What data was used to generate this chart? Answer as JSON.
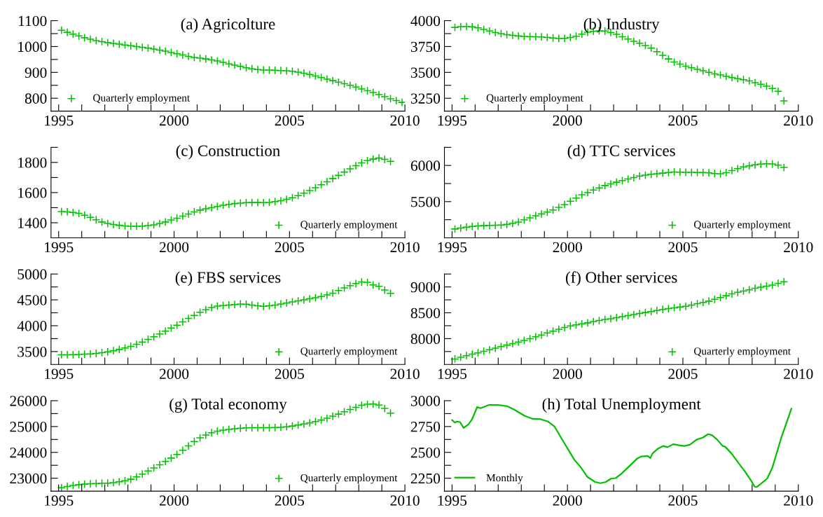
{
  "chart_data": [
    {
      "type": "scatter",
      "title": "(a) Agricolture",
      "marker": "cross",
      "grid": false,
      "legend": "bottom left",
      "x": [
        1995.125,
        1995.375,
        1995.625,
        1995.875,
        1996.125,
        1996.375,
        1996.625,
        1996.875,
        1997.125,
        1997.375,
        1997.625,
        1997.875,
        1998.125,
        1998.375,
        1998.625,
        1998.875,
        1999.125,
        1999.375,
        1999.625,
        1999.875,
        2000.125,
        2000.375,
        2000.625,
        2000.875,
        2001.125,
        2001.375,
        2001.625,
        2001.875,
        2002.125,
        2002.375,
        2002.625,
        2002.875,
        2003.125,
        2003.375,
        2003.625,
        2003.875,
        2004.125,
        2004.375,
        2004.625,
        2004.875,
        2005.125,
        2005.375,
        2005.625,
        2005.875,
        2006.125,
        2006.375,
        2006.625,
        2006.875,
        2007.125,
        2007.375,
        2007.625,
        2007.875,
        2008.125,
        2008.375,
        2008.625,
        2008.875,
        2009.125,
        2009.375,
        2009.625,
        2009.875
      ],
      "series": [
        {
          "name": "Quarterly employment",
          "color": "#00c000",
          "values": [
            1063,
            1055,
            1048,
            1041,
            1034,
            1028,
            1023,
            1019,
            1015,
            1012,
            1009,
            1006,
            1003,
            1000,
            997,
            994,
            990,
            986,
            982,
            977,
            972,
            967,
            962,
            958,
            955,
            952,
            948,
            944,
            939,
            933,
            928,
            923,
            918,
            914,
            911,
            909,
            909,
            908,
            907,
            906,
            904,
            901,
            897,
            892,
            886,
            880,
            874,
            868,
            862,
            856,
            850,
            843,
            836,
            829,
            822,
            814,
            806,
            798,
            791,
            784
          ]
        }
      ],
      "xlim": [
        1994.67,
        2010
      ],
      "ylim": [
        750,
        1100
      ],
      "xticks": [
        1995,
        {
          "value": 1996,
          "label": null
        },
        {
          "value": 1997,
          "label": null
        },
        {
          "value": 1998,
          "label": null
        },
        {
          "value": 1999,
          "label": null
        },
        2000,
        {
          "value": 2001,
          "label": null
        },
        {
          "value": 2002,
          "label": null
        },
        {
          "value": 2003,
          "label": null
        },
        {
          "value": 2004,
          "label": null
        },
        2005,
        {
          "value": 2006,
          "label": null
        },
        {
          "value": 2007,
          "label": null
        },
        {
          "value": 2008,
          "label": null
        },
        {
          "value": 2009,
          "label": null
        },
        2010
      ],
      "yticks": [
        800,
        {
          "value": 850,
          "label": null
        },
        900,
        {
          "value": 950,
          "label": null
        },
        1000,
        {
          "value": 1050,
          "label": null
        },
        1100
      ]
    },
    {
      "type": "scatter",
      "title": "(b) Industry",
      "marker": "cross",
      "grid": false,
      "legend": "bottom left",
      "x": [
        1995.125,
        1995.375,
        1995.625,
        1995.875,
        1996.125,
        1996.375,
        1996.625,
        1996.875,
        1997.125,
        1997.375,
        1997.625,
        1997.875,
        1998.125,
        1998.375,
        1998.625,
        1998.875,
        1999.125,
        1999.375,
        1999.625,
        1999.875,
        2000.125,
        2000.375,
        2000.625,
        2000.875,
        2001.125,
        2001.375,
        2001.625,
        2001.875,
        2002.125,
        2002.375,
        2002.625,
        2002.875,
        2003.125,
        2003.375,
        2003.625,
        2003.875,
        2004.125,
        2004.375,
        2004.625,
        2004.875,
        2005.125,
        2005.375,
        2005.625,
        2005.875,
        2006.125,
        2006.375,
        2006.625,
        2006.875,
        2007.125,
        2007.375,
        2007.625,
        2007.875,
        2008.125,
        2008.375,
        2008.625,
        2008.875,
        2009.125,
        2009.375
      ],
      "series": [
        {
          "name": "Quarterly employment",
          "color": "#00c000",
          "values": [
            3935,
            3942,
            3944,
            3940,
            3930,
            3915,
            3900,
            3885,
            3875,
            3865,
            3858,
            3852,
            3848,
            3846,
            3845,
            3843,
            3838,
            3833,
            3828,
            3829,
            3838,
            3850,
            3870,
            3888,
            3897,
            3902,
            3900,
            3885,
            3868,
            3845,
            3822,
            3800,
            3782,
            3760,
            3735,
            3700,
            3665,
            3630,
            3600,
            3580,
            3560,
            3545,
            3530,
            3515,
            3500,
            3485,
            3475,
            3462,
            3450,
            3440,
            3430,
            3418,
            3400,
            3385,
            3366,
            3344,
            3317,
            3225
          ]
        }
      ],
      "xlim": [
        1994.67,
        2010
      ],
      "ylim": [
        3125,
        4000
      ],
      "xticks": [
        1995,
        {
          "value": 1996,
          "label": null
        },
        {
          "value": 1997,
          "label": null
        },
        {
          "value": 1998,
          "label": null
        },
        {
          "value": 1999,
          "label": null
        },
        2000,
        {
          "value": 2001,
          "label": null
        },
        {
          "value": 2002,
          "label": null
        },
        {
          "value": 2003,
          "label": null
        },
        {
          "value": 2004,
          "label": null
        },
        2005,
        {
          "value": 2006,
          "label": null
        },
        {
          "value": 2007,
          "label": null
        },
        {
          "value": 2008,
          "label": null
        },
        {
          "value": 2009,
          "label": null
        },
        2010
      ],
      "yticks": [
        3250,
        {
          "value": 3375,
          "label": null
        },
        3500,
        {
          "value": 3625,
          "label": null
        },
        3750,
        {
          "value": 3875,
          "label": null
        },
        4000
      ]
    },
    {
      "type": "scatter",
      "title": "(c) Construction",
      "marker": "cross",
      "grid": false,
      "legend": "bottom right",
      "x": [
        1995.125,
        1995.375,
        1995.625,
        1995.875,
        1996.125,
        1996.375,
        1996.625,
        1996.875,
        1997.125,
        1997.375,
        1997.625,
        1997.875,
        1998.125,
        1998.375,
        1998.625,
        1998.875,
        1999.125,
        1999.375,
        1999.625,
        1999.875,
        2000.125,
        2000.375,
        2000.625,
        2000.875,
        2001.125,
        2001.375,
        2001.625,
        2001.875,
        2002.125,
        2002.375,
        2002.625,
        2002.875,
        2003.125,
        2003.375,
        2003.625,
        2003.875,
        2004.125,
        2004.375,
        2004.625,
        2004.875,
        2005.125,
        2005.375,
        2005.625,
        2005.875,
        2006.125,
        2006.375,
        2006.625,
        2006.875,
        2007.125,
        2007.375,
        2007.625,
        2007.875,
        2008.125,
        2008.375,
        2008.625,
        2008.875,
        2009.125,
        2009.375
      ],
      "series": [
        {
          "name": "Quarterly employment",
          "color": "#00c000",
          "values": [
            1474,
            1472,
            1468,
            1462,
            1450,
            1436,
            1420,
            1405,
            1395,
            1388,
            1383,
            1379,
            1377,
            1377,
            1378,
            1381,
            1386,
            1395,
            1405,
            1418,
            1430,
            1444,
            1458,
            1472,
            1484,
            1493,
            1500,
            1508,
            1516,
            1522,
            1527,
            1530,
            1533,
            1534,
            1534,
            1533,
            1535,
            1540,
            1546,
            1555,
            1566,
            1580,
            1596,
            1614,
            1632,
            1652,
            1672,
            1693,
            1714,
            1736,
            1757,
            1778,
            1797,
            1812,
            1822,
            1829,
            1820,
            1807
          ]
        }
      ],
      "xlim": [
        1994.67,
        2010
      ],
      "ylim": [
        1300,
        1900
      ],
      "xticks": [
        1995,
        {
          "value": 1996,
          "label": null
        },
        {
          "value": 1997,
          "label": null
        },
        {
          "value": 1998,
          "label": null
        },
        {
          "value": 1999,
          "label": null
        },
        2000,
        {
          "value": 2001,
          "label": null
        },
        {
          "value": 2002,
          "label": null
        },
        {
          "value": 2003,
          "label": null
        },
        {
          "value": 2004,
          "label": null
        },
        2005,
        {
          "value": 2006,
          "label": null
        },
        {
          "value": 2007,
          "label": null
        },
        {
          "value": 2008,
          "label": null
        },
        {
          "value": 2009,
          "label": null
        },
        2010
      ],
      "yticks": [
        1400,
        {
          "value": 1500,
          "label": null
        },
        1600,
        {
          "value": 1700,
          "label": null
        },
        1800,
        {
          "value": 1900,
          "label": null
        }
      ]
    },
    {
      "type": "scatter",
      "title": "(d) TTC services",
      "marker": "cross",
      "grid": false,
      "legend": "bottom right",
      "x": [
        1995.125,
        1995.375,
        1995.625,
        1995.875,
        1996.125,
        1996.375,
        1996.625,
        1996.875,
        1997.125,
        1997.375,
        1997.625,
        1997.875,
        1998.125,
        1998.375,
        1998.625,
        1998.875,
        1999.125,
        1999.375,
        1999.625,
        1999.875,
        2000.125,
        2000.375,
        2000.625,
        2000.875,
        2001.125,
        2001.375,
        2001.625,
        2001.875,
        2002.125,
        2002.375,
        2002.625,
        2002.875,
        2003.125,
        2003.375,
        2003.625,
        2003.875,
        2004.125,
        2004.375,
        2004.625,
        2004.875,
        2005.125,
        2005.375,
        2005.625,
        2005.875,
        2006.125,
        2006.375,
        2006.625,
        2006.875,
        2007.125,
        2007.375,
        2007.625,
        2007.875,
        2008.125,
        2008.375,
        2008.625,
        2008.875,
        2009.125,
        2009.375
      ],
      "series": [
        {
          "name": "Quarterly employment",
          "color": "#00c000",
          "values": [
            5122,
            5135,
            5148,
            5158,
            5164,
            5168,
            5171,
            5173,
            5176,
            5185,
            5200,
            5218,
            5248,
            5275,
            5305,
            5330,
            5355,
            5385,
            5420,
            5460,
            5505,
            5550,
            5595,
            5625,
            5660,
            5690,
            5722,
            5745,
            5768,
            5790,
            5812,
            5832,
            5853,
            5866,
            5878,
            5886,
            5894,
            5902,
            5910,
            5908,
            5905,
            5904,
            5903,
            5902,
            5898,
            5888,
            5886,
            5900,
            5930,
            5955,
            5980,
            5995,
            6008,
            6018,
            6024,
            6020,
            6005,
            5972
          ]
        }
      ],
      "xlim": [
        1994.67,
        2010
      ],
      "ylim": [
        5000,
        6250
      ],
      "xticks": [
        1995,
        {
          "value": 1996,
          "label": null
        },
        {
          "value": 1997,
          "label": null
        },
        {
          "value": 1998,
          "label": null
        },
        {
          "value": 1999,
          "label": null
        },
        2000,
        {
          "value": 2001,
          "label": null
        },
        {
          "value": 2002,
          "label": null
        },
        {
          "value": 2003,
          "label": null
        },
        {
          "value": 2004,
          "label": null
        },
        2005,
        {
          "value": 2006,
          "label": null
        },
        {
          "value": 2007,
          "label": null
        },
        {
          "value": 2008,
          "label": null
        },
        {
          "value": 2009,
          "label": null
        },
        2010
      ],
      "yticks": [
        {
          "value": 5250,
          "label": null
        },
        5500,
        {
          "value": 5750,
          "label": null
        },
        6000,
        {
          "value": 6250,
          "label": null
        }
      ]
    },
    {
      "type": "scatter",
      "title": "(e) FBS services",
      "marker": "cross",
      "grid": false,
      "legend": "bottom right",
      "x": [
        1995.125,
        1995.375,
        1995.625,
        1995.875,
        1996.125,
        1996.375,
        1996.625,
        1996.875,
        1997.125,
        1997.375,
        1997.625,
        1997.875,
        1998.125,
        1998.375,
        1998.625,
        1998.875,
        1999.125,
        1999.375,
        1999.625,
        1999.875,
        2000.125,
        2000.375,
        2000.625,
        2000.875,
        2001.125,
        2001.375,
        2001.625,
        2001.875,
        2002.125,
        2002.375,
        2002.625,
        2002.875,
        2003.125,
        2003.375,
        2003.625,
        2003.875,
        2004.125,
        2004.375,
        2004.625,
        2004.875,
        2005.125,
        2005.375,
        2005.625,
        2005.875,
        2006.125,
        2006.375,
        2006.625,
        2006.875,
        2007.125,
        2007.375,
        2007.625,
        2007.875,
        2008.125,
        2008.375,
        2008.625,
        2008.875,
        2009.125,
        2009.375
      ],
      "series": [
        {
          "name": "Quarterly employment",
          "color": "#00c000",
          "values": [
            3437,
            3438,
            3440,
            3444,
            3449,
            3455,
            3464,
            3478,
            3495,
            3515,
            3540,
            3570,
            3600,
            3640,
            3685,
            3735,
            3785,
            3840,
            3895,
            3955,
            4010,
            4075,
            4140,
            4200,
            4260,
            4310,
            4350,
            4380,
            4392,
            4400,
            4410,
            4420,
            4415,
            4400,
            4385,
            4375,
            4385,
            4400,
            4420,
            4440,
            4460,
            4480,
            4500,
            4520,
            4540,
            4565,
            4595,
            4630,
            4680,
            4730,
            4775,
            4815,
            4846,
            4838,
            4788,
            4762,
            4690,
            4627
          ]
        }
      ],
      "xlim": [
        1994.67,
        2010
      ],
      "ylim": [
        3250,
        5000
      ],
      "xticks": [
        1995,
        {
          "value": 1996,
          "label": null
        },
        {
          "value": 1997,
          "label": null
        },
        {
          "value": 1998,
          "label": null
        },
        {
          "value": 1999,
          "label": null
        },
        2000,
        {
          "value": 2001,
          "label": null
        },
        {
          "value": 2002,
          "label": null
        },
        {
          "value": 2003,
          "label": null
        },
        {
          "value": 2004,
          "label": null
        },
        2005,
        {
          "value": 2006,
          "label": null
        },
        {
          "value": 2007,
          "label": null
        },
        {
          "value": 2008,
          "label": null
        },
        {
          "value": 2009,
          "label": null
        },
        2010
      ],
      "yticks": [
        3500,
        {
          "value": 3750,
          "label": null
        },
        4000,
        {
          "value": 4250,
          "label": null
        },
        4500,
        {
          "value": 4750,
          "label": null
        },
        5000
      ]
    },
    {
      "type": "scatter",
      "title": "(f) Other services",
      "marker": "cross",
      "grid": false,
      "legend": "bottom right",
      "x": [
        1995.125,
        1995.375,
        1995.625,
        1995.875,
        1996.125,
        1996.375,
        1996.625,
        1996.875,
        1997.125,
        1997.375,
        1997.625,
        1997.875,
        1998.125,
        1998.375,
        1998.625,
        1998.875,
        1999.125,
        1999.375,
        1999.625,
        1999.875,
        2000.125,
        2000.375,
        2000.625,
        2000.875,
        2001.125,
        2001.375,
        2001.625,
        2001.875,
        2002.125,
        2002.375,
        2002.625,
        2002.875,
        2003.125,
        2003.375,
        2003.625,
        2003.875,
        2004.125,
        2004.375,
        2004.625,
        2004.875,
        2005.125,
        2005.375,
        2005.625,
        2005.875,
        2006.125,
        2006.375,
        2006.625,
        2006.875,
        2007.125,
        2007.375,
        2007.625,
        2007.875,
        2008.125,
        2008.375,
        2008.625,
        2008.875,
        2009.125,
        2009.375
      ],
      "series": [
        {
          "name": "Quarterly employment",
          "color": "#00c000",
          "values": [
            7607,
            7640,
            7670,
            7700,
            7725,
            7755,
            7785,
            7815,
            7845,
            7875,
            7905,
            7935,
            7965,
            8000,
            8035,
            8070,
            8110,
            8145,
            8180,
            8215,
            8245,
            8265,
            8285,
            8305,
            8330,
            8350,
            8370,
            8385,
            8405,
            8425,
            8445,
            8465,
            8485,
            8505,
            8525,
            8545,
            8565,
            8580,
            8595,
            8610,
            8625,
            8650,
            8675,
            8700,
            8725,
            8760,
            8795,
            8830,
            8865,
            8895,
            8920,
            8945,
            8975,
            8995,
            9015,
            9035,
            9070,
            9100
          ]
        }
      ],
      "xlim": [
        1994.67,
        2010
      ],
      "ylim": [
        7500,
        9250
      ],
      "xticks": [
        1995,
        {
          "value": 1996,
          "label": null
        },
        {
          "value": 1997,
          "label": null
        },
        {
          "value": 1998,
          "label": null
        },
        {
          "value": 1999,
          "label": null
        },
        2000,
        {
          "value": 2001,
          "label": null
        },
        {
          "value": 2002,
          "label": null
        },
        {
          "value": 2003,
          "label": null
        },
        {
          "value": 2004,
          "label": null
        },
        2005,
        {
          "value": 2006,
          "label": null
        },
        {
          "value": 2007,
          "label": null
        },
        {
          "value": 2008,
          "label": null
        },
        {
          "value": 2009,
          "label": null
        },
        2010
      ],
      "yticks": [
        {
          "value": 7750,
          "label": null
        },
        8000,
        {
          "value": 8250,
          "label": null
        },
        8500,
        {
          "value": 8750,
          "label": null
        },
        9000,
        {
          "value": 9250,
          "label": null
        }
      ]
    },
    {
      "type": "scatter",
      "title": "(g) Total economy",
      "marker": "cross",
      "grid": false,
      "legend": "bottom right",
      "x": [
        1995.125,
        1995.375,
        1995.625,
        1995.875,
        1996.125,
        1996.375,
        1996.625,
        1996.875,
        1997.125,
        1997.375,
        1997.625,
        1997.875,
        1998.125,
        1998.375,
        1998.625,
        1998.875,
        1999.125,
        1999.375,
        1999.625,
        1999.875,
        2000.125,
        2000.375,
        2000.625,
        2000.875,
        2001.125,
        2001.375,
        2001.625,
        2001.875,
        2002.125,
        2002.375,
        2002.625,
        2002.875,
        2003.125,
        2003.375,
        2003.625,
        2003.875,
        2004.125,
        2004.375,
        2004.625,
        2004.875,
        2005.125,
        2005.375,
        2005.625,
        2005.875,
        2006.125,
        2006.375,
        2006.625,
        2006.875,
        2007.125,
        2007.375,
        2007.625,
        2007.875,
        2008.125,
        2008.375,
        2008.625,
        2008.875,
        2009.125,
        2009.375
      ],
      "series": [
        {
          "name": "Quarterly employment",
          "color": "#00c000",
          "values": [
            22630,
            22680,
            22720,
            22750,
            22770,
            22785,
            22795,
            22805,
            22810,
            22830,
            22860,
            22900,
            22960,
            23050,
            23160,
            23280,
            23400,
            23520,
            23650,
            23780,
            23920,
            24080,
            24250,
            24420,
            24560,
            24670,
            24760,
            24820,
            24860,
            24890,
            24915,
            24935,
            24950,
            24955,
            24955,
            24955,
            24955,
            24960,
            24970,
            24990,
            25020,
            25055,
            25095,
            25140,
            25190,
            25250,
            25320,
            25400,
            25480,
            25570,
            25660,
            25740,
            25820,
            25865,
            25870,
            25830,
            25700,
            25520
          ]
        }
      ],
      "xlim": [
        1994.67,
        2010
      ],
      "ylim": [
        22500,
        26000
      ],
      "xticks": [
        1995,
        {
          "value": 1996,
          "label": null
        },
        {
          "value": 1997,
          "label": null
        },
        {
          "value": 1998,
          "label": null
        },
        {
          "value": 1999,
          "label": null
        },
        2000,
        {
          "value": 2001,
          "label": null
        },
        {
          "value": 2002,
          "label": null
        },
        {
          "value": 2003,
          "label": null
        },
        {
          "value": 2004,
          "label": null
        },
        2005,
        {
          "value": 2006,
          "label": null
        },
        {
          "value": 2007,
          "label": null
        },
        {
          "value": 2008,
          "label": null
        },
        {
          "value": 2009,
          "label": null
        },
        2010
      ],
      "yticks": [
        23000,
        {
          "value": 23500,
          "label": null
        },
        24000,
        {
          "value": 24500,
          "label": null
        },
        25000,
        {
          "value": 25500,
          "label": null
        },
        26000
      ]
    },
    {
      "type": "line",
      "title": "(h) Total Unemployment",
      "marker": "none",
      "line_style": "solid",
      "grid": false,
      "legend": "bottom left",
      "x": [
        1995.0,
        1995.125,
        1995.2,
        1995.35,
        1995.5,
        1995.7,
        1995.86,
        1996.09,
        1996.23,
        1996.37,
        1996.6,
        1997.0,
        1997.23,
        1997.4,
        1997.68,
        1998.14,
        1998.48,
        1998.82,
        1999.16,
        1999.44,
        1999.84,
        2000.3,
        2000.58,
        2000.86,
        2001.2,
        2001.43,
        2001.66,
        2001.89,
        2002.09,
        2002.34,
        2002.68,
        2003.02,
        2003.19,
        2003.48,
        2003.59,
        2003.68,
        2003.93,
        2004.16,
        2004.33,
        2004.59,
        2004.84,
        2005.07,
        2005.3,
        2005.59,
        2005.86,
        2006.09,
        2006.26,
        2006.49,
        2006.72,
        2006.83,
        2007.11,
        2007.4,
        2007.68,
        2007.97,
        2008.11,
        2008.2,
        2008.36,
        2008.65,
        2008.88,
        2009.27,
        2009.7
      ],
      "series": [
        {
          "name": "Monthly",
          "color": "#00c000",
          "values": [
            2812,
            2788,
            2798,
            2793,
            2737,
            2768,
            2817,
            2939,
            2927,
            2939,
            2959,
            2959,
            2951,
            2946,
            2915,
            2854,
            2825,
            2822,
            2798,
            2749,
            2598,
            2428,
            2355,
            2263,
            2214,
            2202,
            2214,
            2246,
            2251,
            2294,
            2367,
            2440,
            2460,
            2465,
            2445,
            2489,
            2538,
            2562,
            2550,
            2579,
            2569,
            2562,
            2574,
            2623,
            2642,
            2676,
            2667,
            2623,
            2562,
            2555,
            2489,
            2399,
            2318,
            2221,
            2168,
            2165,
            2192,
            2246,
            2355,
            2647,
            2922
          ]
        }
      ],
      "xlim": [
        1994.67,
        2010
      ],
      "ylim": [
        2125,
        3000
      ],
      "xticks": [
        1995,
        {
          "value": 1996,
          "label": null
        },
        {
          "value": 1997,
          "label": null
        },
        {
          "value": 1998,
          "label": null
        },
        {
          "value": 1999,
          "label": null
        },
        2000,
        {
          "value": 2001,
          "label": null
        },
        {
          "value": 2002,
          "label": null
        },
        {
          "value": 2003,
          "label": null
        },
        {
          "value": 2004,
          "label": null
        },
        2005,
        {
          "value": 2006,
          "label": null
        },
        {
          "value": 2007,
          "label": null
        },
        {
          "value": 2008,
          "label": null
        },
        {
          "value": 2009,
          "label": null
        },
        2010
      ],
      "yticks": [
        2250,
        {
          "value": 2375,
          "label": null
        },
        2500,
        {
          "value": 2625,
          "label": null
        },
        2750,
        {
          "value": 2875,
          "label": null
        },
        3000
      ]
    }
  ]
}
